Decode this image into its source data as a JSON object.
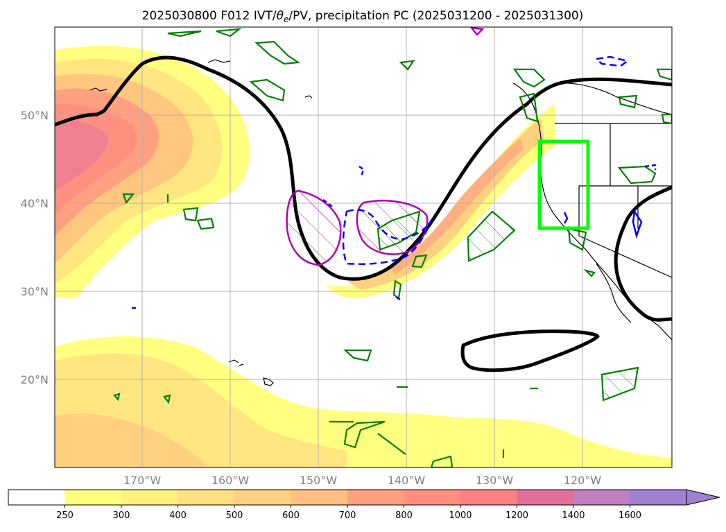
{
  "title": "2025030800 F012 IVT/θe/PV, precipitation PC (2025031200 - 2025031300)",
  "title_parts": {
    "prefix": "2025030800 F012 IVT/",
    "theta": "θ",
    "sub": "e",
    "suffix": "/PV, precipitation PC (2025031200 - 2025031300)"
  },
  "map": {
    "lon_range": [
      -180,
      -110
    ],
    "lat_range": [
      10,
      60
    ],
    "lon_ticks": [
      {
        "value": -170,
        "label": "170°W"
      },
      {
        "value": -160,
        "label": "160°W"
      },
      {
        "value": -150,
        "label": "150°W"
      },
      {
        "value": -140,
        "label": "140°W"
      },
      {
        "value": -130,
        "label": "130°W"
      },
      {
        "value": -120,
        "label": "120°W"
      }
    ],
    "lat_ticks": [
      {
        "value": 20,
        "label": "20°N"
      },
      {
        "value": 30,
        "label": "30°N"
      },
      {
        "value": 40,
        "label": "40°N"
      },
      {
        "value": 50,
        "label": "50°N"
      }
    ],
    "gridlines": true,
    "colors": {
      "ivt_low": "#ffff80",
      "ivt_mid": "#ffd980",
      "ivt_high": "#ff9980",
      "theta_e_contour": "#000000",
      "pv_contour": "#b000b0",
      "precip_pos": "#008000",
      "precip_neg": "#0000ff",
      "target_box": "#00ff00"
    },
    "target_box": {
      "lon": [
        -125.5,
        -119.5
      ],
      "lat": [
        37,
        47
      ]
    }
  },
  "colorbar": {
    "levels": [
      "250",
      "300",
      "400",
      "500",
      "600",
      "700",
      "800",
      "1000",
      "1200",
      "1400",
      "1600"
    ],
    "colors": [
      "#ffffff",
      "#ffff80",
      "#fff080",
      "#ffe080",
      "#ffd080",
      "#ffc080",
      "#ffa080",
      "#ff9080",
      "#ff8080",
      "#e0709a",
      "#c080c0",
      "#a080d0"
    ],
    "extend": "max"
  }
}
